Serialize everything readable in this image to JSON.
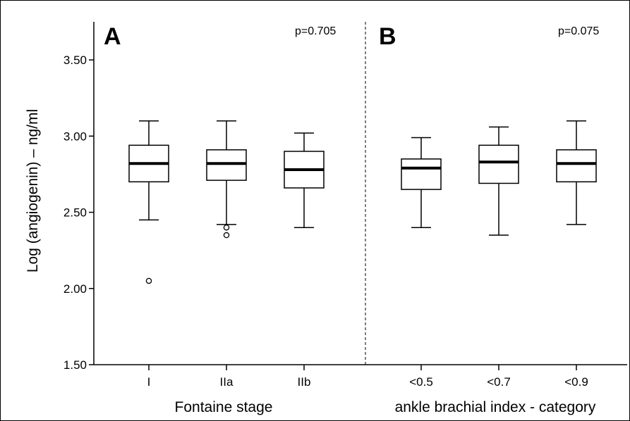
{
  "chart_data": {
    "type": "box",
    "ylabel": "Log (angiogenin) – ng/ml",
    "ylim": [
      1.5,
      3.75
    ],
    "yticks": [
      "1.50",
      "2.00",
      "2.50",
      "3.00",
      "3.50"
    ],
    "grid": false,
    "panels": [
      {
        "letter": "A",
        "pvalue": "p=0.705",
        "xlabel": "Fontaine stage",
        "categories": [
          "I",
          "IIa",
          "IIb"
        ],
        "boxes": [
          {
            "whisker_low": 2.45,
            "q1": 2.7,
            "median": 2.82,
            "q3": 2.94,
            "whisker_high": 3.1,
            "outliers": [
              2.05
            ]
          },
          {
            "whisker_low": 2.42,
            "q1": 2.71,
            "median": 2.82,
            "q3": 2.91,
            "whisker_high": 3.1,
            "outliers": [
              2.4,
              2.35
            ]
          },
          {
            "whisker_low": 2.4,
            "q1": 2.66,
            "median": 2.78,
            "q3": 2.9,
            "whisker_high": 3.02,
            "outliers": []
          }
        ]
      },
      {
        "letter": "B",
        "pvalue": "p=0.075",
        "xlabel": "ankle brachial index - category",
        "categories": [
          "<0.5",
          "<0.7",
          "<0.9"
        ],
        "boxes": [
          {
            "whisker_low": 2.4,
            "q1": 2.65,
            "median": 2.79,
            "q3": 2.85,
            "whisker_high": 2.99,
            "outliers": []
          },
          {
            "whisker_low": 2.35,
            "q1": 2.69,
            "median": 2.83,
            "q3": 2.94,
            "whisker_high": 3.06,
            "outliers": []
          },
          {
            "whisker_low": 2.42,
            "q1": 2.7,
            "median": 2.82,
            "q3": 2.91,
            "whisker_high": 3.1,
            "outliers": []
          }
        ]
      }
    ]
  }
}
